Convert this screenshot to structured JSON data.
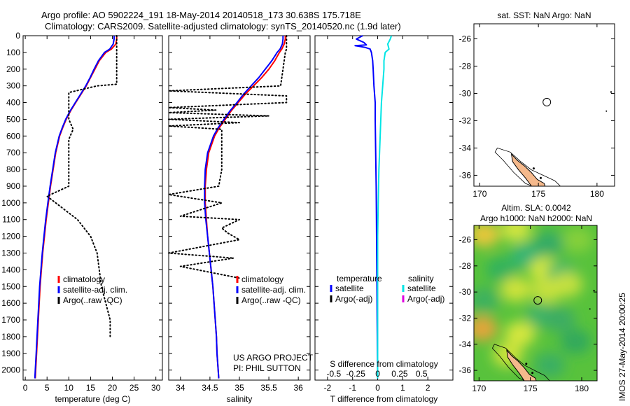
{
  "title_line1": "Argo profile: AO 5902224_191 18-May-2014 20140518_173 30.638S 175.718E",
  "title_line2": "Climatology: CARS2009. Satellite-adjusted climatology: synTS_20140520.nc (1.9d later)",
  "credit": "IMOS 27-May-2014 20:00:25",
  "project_line1": "US ARGO PROJECT",
  "project_line2": "PI: PHIL SUTTON",
  "colors": {
    "climatology": "#ff0000",
    "satellite": "#0000ff",
    "argo": "#000000",
    "satellite_salinity": "#00e5e5",
    "argo_adj_salinity": "#e000e0",
    "land": "#f5b98c",
    "sla_green": "#58c23c"
  },
  "chart_data": [
    {
      "type": "line",
      "panel": "temperature",
      "xlabel": "temperature (deg C)",
      "ylabel": "",
      "xlim": [
        -0.5,
        31.5
      ],
      "ylim": [
        2060,
        0
      ],
      "xticks": [
        0,
        5,
        10,
        15,
        20,
        25,
        30
      ],
      "yticks": [
        0,
        100,
        200,
        300,
        400,
        500,
        600,
        700,
        800,
        900,
        1000,
        1100,
        1200,
        1300,
        1400,
        1500,
        1600,
        1700,
        1800,
        1900,
        2000
      ],
      "legend_position": "lower-right",
      "legend": [
        "climatology",
        "satellite-adj. clim.",
        "Argo(..raw -QC)"
      ],
      "series": [
        {
          "name": "climatology",
          "style": "solid",
          "color": "#ff0000",
          "depth": [
            0,
            20,
            50,
            80,
            100,
            150,
            200,
            250,
            300,
            350,
            400,
            450,
            500,
            550,
            600,
            700,
            800,
            900,
            1000,
            1100,
            1200,
            1300,
            1400,
            1500,
            1600,
            1700,
            1800,
            1900,
            2000,
            2050
          ],
          "value": [
            21.0,
            21.0,
            20.8,
            19.8,
            18.5,
            17.0,
            16.0,
            15.0,
            14.0,
            12.8,
            11.6,
            10.4,
            9.4,
            8.6,
            7.9,
            7.0,
            6.4,
            5.8,
            5.3,
            4.8,
            4.4,
            4.0,
            3.7,
            3.4,
            3.2,
            3.0,
            2.8,
            2.6,
            2.4,
            2.3
          ]
        },
        {
          "name": "satellite-adj. clim.",
          "style": "solid",
          "color": "#0000ff",
          "depth": [
            0,
            20,
            50,
            80,
            100,
            150,
            200,
            250,
            300,
            350,
            400,
            450,
            500,
            550,
            600,
            700,
            800,
            900,
            1000,
            1100,
            1200,
            1300,
            1400,
            1500,
            1600,
            1700,
            1800,
            1900,
            2000,
            2050
          ],
          "value": [
            20.4,
            20.4,
            20.2,
            19.4,
            18.2,
            16.8,
            15.8,
            14.9,
            13.9,
            12.7,
            11.5,
            10.3,
            9.3,
            8.5,
            7.8,
            6.9,
            6.3,
            5.7,
            5.2,
            4.7,
            4.3,
            3.9,
            3.6,
            3.3,
            3.1,
            2.9,
            2.7,
            2.5,
            2.3,
            2.2
          ]
        },
        {
          "name": "Argo(..raw -QC)",
          "style": "dotted",
          "color": "#000000",
          "depth": [
            0,
            50,
            100,
            200,
            290,
            300,
            340,
            500,
            560,
            620,
            900,
            960,
            1100,
            1200,
            1300,
            1400,
            1500,
            1550,
            1700,
            1800
          ],
          "value": [
            21.0,
            21.0,
            21.0,
            21.0,
            21.0,
            16.5,
            10.0,
            10.0,
            11.0,
            10.0,
            10.0,
            5.0,
            12.0,
            15.0,
            16.5,
            17.0,
            17.5,
            18.0,
            19.5,
            19.5
          ]
        }
      ]
    },
    {
      "type": "line",
      "panel": "salinity",
      "xlabel": "salinity",
      "ylabel": "",
      "xlim": [
        33.8,
        36.2
      ],
      "ylim": [
        2060,
        0
      ],
      "xticks": [
        34,
        34.5,
        35,
        35.5,
        36
      ],
      "xticklabels": [
        "34",
        "34.5",
        "35",
        "35.5",
        "36"
      ],
      "legend_position": "lower-right",
      "legend": [
        "climatology",
        "satellite-adj. clim.",
        "Argo(..raw -QC)"
      ],
      "series": [
        {
          "name": "climatology",
          "style": "solid",
          "color": "#ff0000",
          "depth": [
            0,
            20,
            50,
            80,
            100,
            150,
            200,
            250,
            300,
            350,
            400,
            450,
            500,
            550,
            600,
            700,
            800,
            900,
            1000,
            1100,
            1200,
            1300,
            1400,
            1500,
            1600,
            1700,
            1800,
            1900,
            2000,
            2050
          ],
          "value": [
            35.78,
            35.78,
            35.76,
            35.72,
            35.68,
            35.6,
            35.5,
            35.38,
            35.24,
            35.1,
            34.98,
            34.86,
            34.76,
            34.66,
            34.58,
            34.48,
            34.44,
            34.42,
            34.42,
            34.44,
            34.46,
            34.49,
            34.52,
            34.55,
            34.57,
            34.59,
            34.61,
            34.62,
            34.64,
            34.65
          ]
        },
        {
          "name": "satellite-adj. clim.",
          "style": "solid",
          "color": "#0000ff",
          "depth": [
            0,
            20,
            50,
            80,
            100,
            150,
            200,
            250,
            300,
            350,
            400,
            450,
            500,
            550,
            600,
            700,
            800,
            900,
            1000,
            1100,
            1200,
            1300,
            1400,
            1500,
            1600,
            1700,
            1800,
            1900,
            2000,
            2050
          ],
          "value": [
            35.74,
            35.74,
            35.73,
            35.69,
            35.64,
            35.55,
            35.44,
            35.33,
            35.2,
            35.07,
            34.96,
            34.84,
            34.74,
            34.64,
            34.56,
            34.46,
            34.42,
            34.41,
            34.41,
            34.43,
            34.46,
            34.49,
            34.52,
            34.55,
            34.57,
            34.59,
            34.61,
            34.62,
            34.64,
            34.65
          ]
        },
        {
          "name": "Argo(..raw -QC)",
          "style": "dotted",
          "color": "#000000",
          "depth": [
            0,
            50,
            80,
            100,
            200,
            300,
            330,
            360,
            400,
            430,
            445,
            460,
            480,
            500,
            520,
            540,
            560,
            700,
            800,
            900,
            950,
            1000,
            1080,
            1100,
            1150,
            1180,
            1220,
            1300,
            1330,
            1380,
            1450
          ],
          "value": [
            35.8,
            35.8,
            35.8,
            35.78,
            35.74,
            35.7,
            33.8,
            35.8,
            35.8,
            33.8,
            34.6,
            33.8,
            35.5,
            33.8,
            35.0,
            33.8,
            34.7,
            34.7,
            34.7,
            34.65,
            33.8,
            34.7,
            34.0,
            35.0,
            34.7,
            34.8,
            35.0,
            33.8,
            34.9,
            34.0,
            35.0
          ]
        }
      ]
    },
    {
      "type": "line",
      "panel": "difference",
      "xlabel": "T difference from climatology",
      "xlabel_top": "S difference from climatology",
      "ylabel": "",
      "xlim": [
        -2.5,
        3.0
      ],
      "ylim": [
        2060,
        0
      ],
      "xticks": [
        -2,
        -1,
        0,
        1,
        2
      ],
      "xticks_top": [
        -0.5,
        -0.25,
        0,
        0.25,
        0.5
      ],
      "xticklabels_top": [
        "-0.5",
        "-0.25",
        "0",
        "0.25",
        "0.5"
      ],
      "legend_position": "lower-middle",
      "legend_temperature_title": "temperature",
      "legend_salinity_title": "salinity",
      "legend": [
        "satellite",
        "Argo(-adj)",
        "satellite",
        "Argo(-adj)"
      ],
      "series": [
        {
          "name": "temperature satellite",
          "style": "solid",
          "color": "#0000ff",
          "depth": [
            0,
            20,
            40,
            55,
            60,
            70,
            80,
            100,
            150,
            200,
            300,
            400,
            500,
            700,
            900,
            1100,
            1300,
            1500,
            1700,
            1900,
            2050
          ],
          "value": [
            -0.6,
            -0.85,
            -0.55,
            -0.45,
            -0.9,
            -0.5,
            -0.3,
            -0.25,
            -0.2,
            -0.18,
            -0.15,
            -0.1,
            -0.1,
            -0.08,
            -0.06,
            -0.05,
            -0.04,
            -0.03,
            -0.02,
            -0.01,
            0.0
          ]
        },
        {
          "name": "salinity satellite",
          "style": "solid",
          "color": "#00e5e5",
          "depth": [
            0,
            20,
            50,
            80,
            100,
            150,
            200,
            300,
            400,
            600,
            800,
            1000,
            1200,
            1400,
            1600,
            1800,
            2050
          ],
          "value": [
            0.55,
            0.5,
            0.4,
            0.45,
            0.3,
            0.25,
            0.25,
            0.2,
            0.15,
            0.1,
            0.05,
            0.02,
            0.0,
            0.0,
            0.0,
            0.0,
            0.0
          ]
        }
      ]
    },
    {
      "type": "map",
      "panel": "sst-map",
      "title": "sat. SST: NaN Argo: NaN",
      "xlim": [
        169.5,
        181.5
      ],
      "ylim": [
        -36.8,
        -24.9
      ],
      "xticks": [
        170,
        175,
        180
      ],
      "yticks": [
        -26,
        -28,
        -30,
        -32,
        -34,
        -36
      ],
      "marker": {
        "lon": 175.72,
        "lat": -30.64
      }
    },
    {
      "type": "heatmap",
      "panel": "sla-map",
      "title": "Altim. SLA: 0.0042",
      "subtitle": "Argo h1000: NaN h2000: NaN",
      "xlim": [
        169.5,
        181.5
      ],
      "ylim": [
        -36.8,
        -24.9
      ],
      "xticks": [
        170,
        175,
        180
      ],
      "yticks": [
        -26,
        -28,
        -30,
        -32,
        -34,
        -36
      ],
      "marker": {
        "lon": 175.72,
        "lat": -30.64
      },
      "hotspots": [
        {
          "lon": 170.5,
          "lat": -25.6,
          "c": "#f7c83a"
        },
        {
          "lon": 173.6,
          "lat": -25.2,
          "c": "#dde840"
        },
        {
          "lon": 172.2,
          "lat": -28.3,
          "c": "#2fb060"
        },
        {
          "lon": 174.6,
          "lat": -27.2,
          "c": "#31b37a"
        },
        {
          "lon": 176.8,
          "lat": -26.3,
          "c": "#32a96a"
        },
        {
          "lon": 176.4,
          "lat": -28.3,
          "c": "#e2ec3c"
        },
        {
          "lon": 178.0,
          "lat": -28.6,
          "c": "#3bb470"
        },
        {
          "lon": 173.6,
          "lat": -29.8,
          "c": "#d9e63a"
        },
        {
          "lon": 176.6,
          "lat": -29.9,
          "c": "#cfe33f"
        },
        {
          "lon": 178.6,
          "lat": -29.4,
          "c": "#cfe33f"
        },
        {
          "lon": 170.5,
          "lat": -30.6,
          "c": "#3aaf63"
        },
        {
          "lon": 170.3,
          "lat": -32.8,
          "c": "#f2a23a"
        },
        {
          "lon": 176.0,
          "lat": -31.8,
          "c": "#3fb36a"
        },
        {
          "lon": 177.9,
          "lat": -32.1,
          "c": "#3aab66"
        },
        {
          "lon": 174.0,
          "lat": -33.2,
          "c": "#e1ea3e"
        },
        {
          "lon": 172.8,
          "lat": -34.8,
          "c": "#d7e53b"
        },
        {
          "lon": 179.4,
          "lat": -33.8,
          "c": "#2fa660"
        },
        {
          "lon": 176.9,
          "lat": -35.6,
          "c": "#36ad67"
        },
        {
          "lon": 179.6,
          "lat": -26.0,
          "c": "#8ad13c"
        }
      ]
    }
  ]
}
